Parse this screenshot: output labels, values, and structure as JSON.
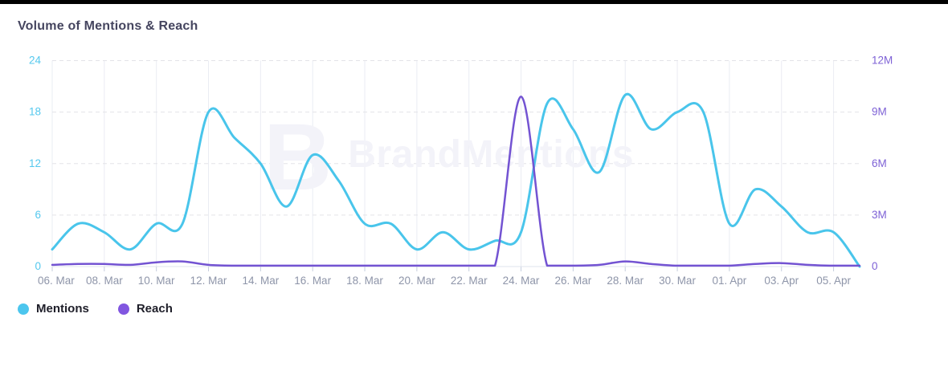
{
  "page": {
    "title": "Volume of Mentions & Reach"
  },
  "watermark": {
    "logo_letter": "B",
    "text": "BrandMentions",
    "color": "#f3f3f9"
  },
  "legend": {
    "items": [
      {
        "label": "Mentions",
        "color": "#4cc6ee"
      },
      {
        "label": "Reach",
        "color": "#8156e0"
      }
    ]
  },
  "chart_data": {
    "type": "line",
    "title": "Volume of Mentions & Reach",
    "x_labels": [
      "06. Mar",
      "08. Mar",
      "10. Mar",
      "12. Mar",
      "14. Mar",
      "16. Mar",
      "18. Mar",
      "20. Mar",
      "22. Mar",
      "24. Mar",
      "26. Mar",
      "28. Mar",
      "30. Mar",
      "01. Apr",
      "03. Apr",
      "05. Apr"
    ],
    "days_per_x_label": 2,
    "total_days": 31,
    "left_axis": {
      "title": "",
      "tick_labels": [
        "0",
        "6",
        "12",
        "18",
        "24"
      ],
      "tick_values": [
        0,
        6,
        12,
        18,
        24
      ],
      "range": [
        0,
        24
      ],
      "color": "#55c8ee"
    },
    "right_axis": {
      "title": "",
      "tick_labels": [
        "0",
        "3M",
        "6M",
        "9M",
        "12M"
      ],
      "tick_values": [
        0,
        3,
        6,
        9,
        12
      ],
      "range_millions": [
        0,
        12
      ],
      "color": "#7e62d6"
    },
    "grid": {
      "horizontal": "dashed",
      "vertical": "solid",
      "legend_position": "bottom-left"
    },
    "series": [
      {
        "name": "Mentions",
        "axis": "left",
        "color": "#49c5eb",
        "line_width": 3,
        "values": [
          2,
          5,
          4,
          2,
          5,
          5,
          18,
          15,
          12,
          7,
          13,
          10,
          5,
          5,
          2,
          4,
          2,
          3,
          4,
          19,
          16,
          11,
          20,
          16,
          18,
          18,
          5,
          9,
          7,
          4,
          4,
          0
        ]
      },
      {
        "name": "Reach",
        "axis": "right",
        "unit": "millions",
        "color": "#7353d2",
        "line_width": 2.5,
        "values": [
          0.1,
          0.15,
          0.15,
          0.1,
          0.25,
          0.3,
          0.1,
          0.05,
          0.05,
          0.05,
          0.05,
          0.05,
          0.05,
          0.05,
          0.05,
          0.05,
          0.05,
          0.05,
          9.9,
          0.05,
          0.05,
          0.1,
          0.3,
          0.15,
          0.05,
          0.05,
          0.05,
          0.15,
          0.2,
          0.1,
          0.05,
          0.05
        ]
      }
    ]
  },
  "colors": {
    "grid_vertical": "#eaecf3",
    "grid_horizontal": "#e3e3e8",
    "baseline": "#dfe3ec",
    "tick_mark": "#c6cede",
    "x_label": "#8e95a9"
  }
}
